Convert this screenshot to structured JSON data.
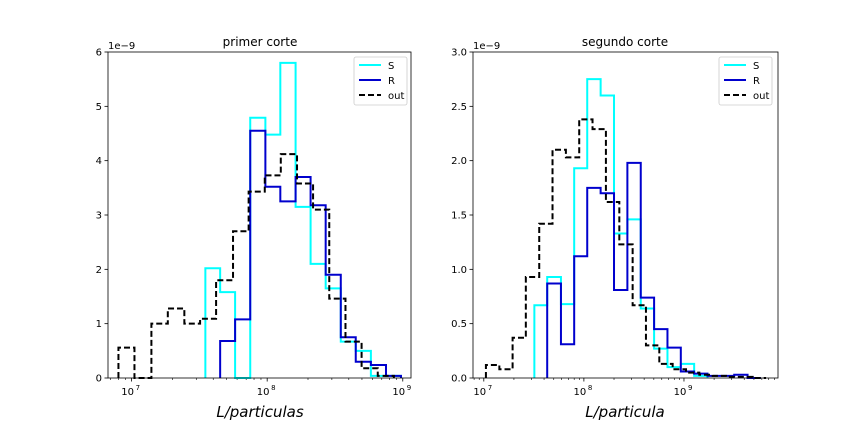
{
  "chart_data": [
    {
      "type": "histogram-step",
      "title": "primer corte",
      "xlabel": "L/particulas",
      "ylabel": "",
      "xscale": "log",
      "xlim": [
        6700000,
        1150000000
      ],
      "ylim": [
        0,
        6
      ],
      "yticks": [
        0,
        1,
        2,
        3,
        4,
        5,
        6
      ],
      "ytick_labels": [
        "0",
        "1",
        "2",
        "3",
        "4",
        "5",
        "6"
      ],
      "xticks": [
        10000000,
        100000000,
        1000000000
      ],
      "xtick_labels": [
        "10",
        "10",
        "10"
      ],
      "xtick_exps": [
        "7",
        "8",
        "9"
      ],
      "offset_label": "1e−9",
      "legend": {
        "position": "top-right",
        "entries": [
          "S",
          "R",
          "out"
        ]
      },
      "series": [
        {
          "name": "S",
          "color": "#00ffff",
          "style": "solid",
          "edges": [
            35000000,
            45000000,
            58000000,
            75000000,
            97000000,
            125000000,
            162000000,
            209000000,
            270000000,
            349000000,
            450000000,
            582000000,
            752000000,
            970000000
          ],
          "values": [
            2.02,
            1.58,
            0.0,
            4.79,
            4.48,
            5.8,
            3.15,
            2.1,
            1.65,
            0.67,
            0.5,
            0.04,
            0.04
          ]
        },
        {
          "name": "R",
          "color": "#0000cd",
          "style": "solid",
          "edges": [
            45000000,
            58000000,
            75000000,
            97000000,
            125000000,
            162000000,
            209000000,
            270000000,
            349000000,
            450000000,
            582000000,
            752000000,
            970000000
          ],
          "values": [
            0.68,
            1.08,
            4.55,
            3.52,
            3.25,
            3.7,
            3.18,
            1.9,
            0.75,
            0.3,
            0.24,
            0.04
          ]
        },
        {
          "name": "out",
          "color": "#000000",
          "style": "dashed",
          "edges": [
            8000000,
            10500000,
            14000000,
            18500000,
            24500000,
            32000000,
            42000000,
            56000000,
            73000000,
            96000000,
            126000000,
            166000000,
            218000000,
            287000000,
            378000000,
            497000000,
            654000000,
            860000000
          ],
          "values": [
            0.56,
            0.0,
            1.0,
            1.28,
            1.0,
            1.09,
            1.8,
            2.7,
            3.43,
            3.73,
            4.12,
            3.58,
            3.1,
            1.46,
            0.67,
            0.18,
            0.04
          ]
        }
      ]
    },
    {
      "type": "histogram-step",
      "title": "segundo corte",
      "xlabel": "L/particula",
      "ylabel": "",
      "xscale": "log",
      "xlim": [
        7800000,
        8700000000
      ],
      "ylim": [
        0,
        3.0
      ],
      "yticks": [
        0,
        0.5,
        1.0,
        1.5,
        2.0,
        2.5,
        3.0
      ],
      "ytick_labels": [
        "0.0",
        "0.5",
        "1.0",
        "1.5",
        "2.0",
        "2.5",
        "3.0"
      ],
      "xticks": [
        10000000,
        100000000,
        1000000000
      ],
      "xtick_labels": [
        "10",
        "10",
        "10"
      ],
      "xtick_exps": [
        "7",
        "8",
        "9"
      ],
      "offset_label": "1e−9",
      "legend": {
        "position": "top-right",
        "entries": [
          "S",
          "R",
          "out"
        ]
      },
      "series": [
        {
          "name": "S",
          "color": "#00ffff",
          "style": "solid",
          "edges": [
            32000000,
            43000000,
            59000000,
            80000000,
            108000000,
            147000000,
            200000000,
            272000000,
            370000000,
            503000000,
            684000000,
            930000000,
            1264000000,
            1718000000
          ],
          "values": [
            0.67,
            0.93,
            0.68,
            1.93,
            2.75,
            2.6,
            1.33,
            1.46,
            0.64,
            0.27,
            0.1,
            0.13,
            0.02
          ]
        },
        {
          "name": "R",
          "color": "#0000cd",
          "style": "solid",
          "edges": [
            43000000,
            59000000,
            80000000,
            108000000,
            147000000,
            200000000,
            272000000,
            370000000,
            503000000,
            684000000,
            930000000,
            1264000000,
            1718000000,
            2336000000,
            3176000000,
            4318000000,
            5870000000
          ],
          "values": [
            0.87,
            0.31,
            1.12,
            1.75,
            1.7,
            0.81,
            1.98,
            0.74,
            0.45,
            0.28,
            0.06,
            0.04,
            0.02,
            0.02,
            0.03,
            0.0
          ]
        },
        {
          "name": "out",
          "color": "#000000",
          "style": "dashed",
          "edges": [
            10500000,
            14300000,
            19400000,
            26300000,
            35800000,
            48600000,
            66100000,
            89800000,
            122000000,
            166000000,
            226000000,
            307000000,
            417000000,
            567000000,
            771000000,
            1048000000,
            1424000000,
            1936000000,
            2631000000,
            3576000000,
            4861000000,
            6607000000
          ],
          "values": [
            0.12,
            0.08,
            0.37,
            0.93,
            1.42,
            2.1,
            2.03,
            2.38,
            2.29,
            1.62,
            1.23,
            0.67,
            0.3,
            0.13,
            0.08,
            0.05,
            0.03,
            0.02,
            0.01,
            0.01,
            0.0
          ]
        }
      ]
    }
  ]
}
